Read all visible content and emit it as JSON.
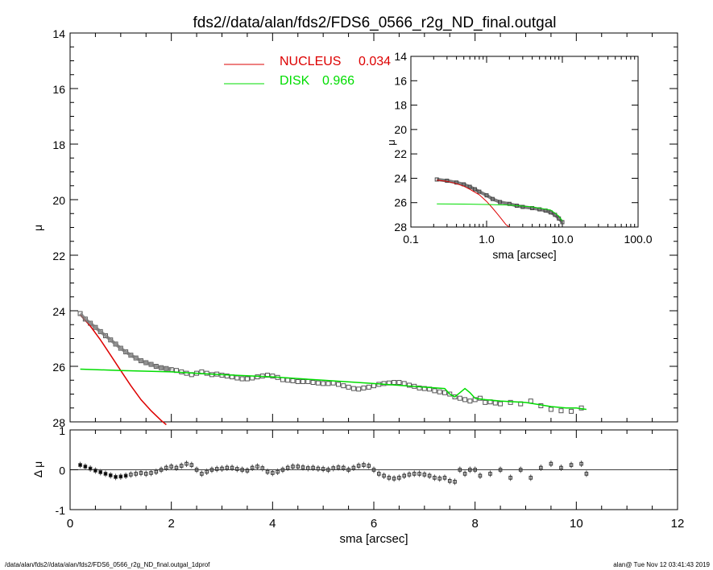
{
  "title": "fds2//data/alan/fds2/FDS6_0566_r2g_ND_final.outgal",
  "footer": {
    "left": "/data/alan/fds2//data/alan/fds2/FDS6_0566_r2g_ND_final.outgal_1dprof",
    "right": "alan@  Tue Nov 12 03:41:43 2019"
  },
  "colors": {
    "nucleus": "#dd0000",
    "disk": "#00dd00",
    "data": "#555555",
    "axis": "#000000"
  },
  "legend": [
    {
      "name": "NUCLEUS",
      "value": "0.034"
    },
    {
      "name": "DISK",
      "value": "0.966"
    }
  ],
  "chart_data": [
    {
      "id": "main",
      "type": "scatter",
      "xlabel": "",
      "ylabel": "μ",
      "xlim": [
        0,
        12
      ],
      "ylim": [
        28,
        14
      ],
      "y_inverted": true,
      "yticks": [
        "14",
        "16",
        "18",
        "20",
        "22",
        "24",
        "26",
        "28"
      ],
      "observed": {
        "x": [
          0.2,
          0.3,
          0.4,
          0.5,
          0.6,
          0.7,
          0.8,
          0.9,
          1.0,
          1.1,
          1.2,
          1.3,
          1.4,
          1.5,
          1.6,
          1.7,
          1.8,
          1.9,
          2.0,
          2.1,
          2.2,
          2.3,
          2.4,
          2.5,
          2.6,
          2.7,
          2.8,
          2.9,
          3.0,
          3.1,
          3.2,
          3.3,
          3.4,
          3.5,
          3.6,
          3.7,
          3.8,
          3.9,
          4.0,
          4.1,
          4.2,
          4.3,
          4.4,
          4.5,
          4.6,
          4.7,
          4.8,
          4.9,
          5.0,
          5.1,
          5.2,
          5.3,
          5.4,
          5.5,
          5.6,
          5.7,
          5.8,
          5.9,
          6.0,
          6.1,
          6.2,
          6.3,
          6.4,
          6.5,
          6.6,
          6.7,
          6.8,
          6.9,
          7.0,
          7.1,
          7.2,
          7.3,
          7.4,
          7.5,
          7.6,
          7.7,
          7.8,
          7.9,
          8.0,
          8.1,
          8.2,
          8.3,
          8.4,
          8.5,
          8.7,
          8.9,
          9.1,
          9.3,
          9.5,
          9.7,
          9.9,
          10.1
        ],
        "y": [
          24.1,
          24.3,
          24.45,
          24.6,
          24.75,
          24.9,
          25.05,
          25.2,
          25.35,
          25.48,
          25.6,
          25.7,
          25.8,
          25.87,
          25.93,
          26.0,
          26.05,
          26.08,
          26.12,
          26.15,
          26.2,
          26.25,
          26.3,
          26.25,
          26.2,
          26.25,
          26.3,
          26.28,
          26.32,
          26.35,
          26.38,
          26.42,
          26.45,
          26.45,
          26.42,
          26.38,
          26.35,
          26.32,
          26.35,
          26.4,
          26.48,
          26.5,
          26.52,
          26.55,
          26.55,
          26.55,
          26.58,
          26.6,
          26.62,
          26.62,
          26.6,
          26.65,
          26.7,
          26.75,
          26.8,
          26.82,
          26.78,
          26.75,
          26.7,
          26.65,
          26.62,
          26.6,
          26.58,
          26.58,
          26.62,
          26.68,
          26.72,
          26.78,
          26.8,
          26.82,
          26.88,
          26.92,
          26.95,
          27.0,
          27.1,
          27.15,
          27.2,
          27.25,
          27.2,
          27.15,
          27.3,
          27.28,
          27.32,
          27.35,
          27.3,
          27.35,
          27.25,
          27.42,
          27.55,
          27.6,
          27.62,
          27.5
        ]
      },
      "nucleus_model": {
        "x": [
          0.2,
          0.4,
          0.6,
          0.8,
          1.0,
          1.2,
          1.4,
          1.6,
          1.8,
          1.9
        ],
        "y": [
          24.15,
          24.55,
          25.05,
          25.6,
          26.15,
          26.7,
          27.2,
          27.6,
          27.95,
          28.1
        ]
      },
      "disk_model": {
        "x": [
          0.2,
          1.0,
          2.0,
          3.0,
          4.0,
          5.0,
          6.0,
          7.0,
          7.4,
          7.5,
          7.6,
          7.7,
          7.8,
          7.9,
          8.0,
          8.2,
          8.5,
          9.0,
          9.5,
          9.8,
          10.0,
          10.2
        ],
        "y": [
          26.1,
          26.15,
          26.2,
          26.3,
          26.38,
          26.5,
          26.62,
          26.75,
          26.8,
          27.0,
          27.1,
          26.95,
          26.8,
          26.95,
          27.15,
          27.2,
          27.25,
          27.3,
          27.45,
          27.5,
          27.5,
          27.55
        ]
      }
    },
    {
      "id": "residual",
      "type": "scatter",
      "xlabel": "sma [arcsec]",
      "ylabel": "Δ μ",
      "xlim": [
        0,
        12
      ],
      "ylim": [
        -1,
        1
      ],
      "xticks": [
        "0",
        "2",
        "4",
        "6",
        "8",
        "10",
        "12"
      ],
      "yticks": [
        "1",
        "0",
        "-1"
      ],
      "x": [
        0.2,
        0.3,
        0.4,
        0.5,
        0.6,
        0.7,
        0.8,
        0.9,
        1.0,
        1.1,
        1.2,
        1.3,
        1.4,
        1.5,
        1.6,
        1.7,
        1.8,
        1.9,
        2.0,
        2.1,
        2.2,
        2.3,
        2.4,
        2.5,
        2.6,
        2.7,
        2.8,
        2.9,
        3.0,
        3.1,
        3.2,
        3.3,
        3.4,
        3.5,
        3.6,
        3.7,
        3.8,
        3.9,
        4.0,
        4.1,
        4.2,
        4.3,
        4.4,
        4.5,
        4.6,
        4.7,
        4.8,
        4.9,
        5.0,
        5.1,
        5.2,
        5.3,
        5.4,
        5.5,
        5.6,
        5.7,
        5.8,
        5.9,
        6.0,
        6.1,
        6.2,
        6.3,
        6.4,
        6.5,
        6.6,
        6.7,
        6.8,
        6.9,
        7.0,
        7.1,
        7.2,
        7.3,
        7.4,
        7.5,
        7.6,
        7.7,
        7.8,
        7.9,
        8.0,
        8.1,
        8.3,
        8.5,
        8.7,
        8.9,
        9.1,
        9.3,
        9.5,
        9.7,
        9.9,
        10.1,
        10.2
      ],
      "y": [
        0.12,
        0.08,
        0.03,
        -0.02,
        -0.06,
        -0.1,
        -0.14,
        -0.18,
        -0.17,
        -0.15,
        -0.12,
        -0.1,
        -0.08,
        -0.1,
        -0.08,
        -0.05,
        0.0,
        0.05,
        0.08,
        0.05,
        0.1,
        0.15,
        0.12,
        0.0,
        -0.1,
        -0.05,
        0.0,
        0.02,
        0.03,
        0.05,
        0.05,
        0.02,
        0.0,
        -0.02,
        0.05,
        0.08,
        0.04,
        -0.05,
        -0.08,
        -0.05,
        0.0,
        0.05,
        0.08,
        0.08,
        0.06,
        0.04,
        0.05,
        0.03,
        0.02,
        0.0,
        0.04,
        0.06,
        0.05,
        0.0,
        0.05,
        0.1,
        0.12,
        0.1,
        0.0,
        -0.1,
        -0.15,
        -0.2,
        -0.22,
        -0.2,
        -0.15,
        -0.12,
        -0.1,
        -0.1,
        -0.12,
        -0.15,
        -0.2,
        -0.22,
        -0.2,
        -0.28,
        -0.3,
        0.0,
        -0.1,
        0.0,
        0.0,
        -0.15,
        -0.1,
        0.0,
        -0.2,
        0.0,
        -0.2,
        0.05,
        0.15,
        0.05,
        0.12,
        0.15,
        -0.1
      ]
    },
    {
      "id": "inset",
      "type": "scatter",
      "xlabel": "sma [arcsec]",
      "ylabel": "μ",
      "xscale": "log",
      "xlim": [
        0.1,
        100.0
      ],
      "ylim": [
        28,
        14
      ],
      "y_inverted": true,
      "xticks": [
        "0.1",
        "1.0",
        "10.0",
        "100.0"
      ],
      "yticks": [
        "14",
        "16",
        "18",
        "20",
        "22",
        "24",
        "26",
        "28"
      ],
      "observed": {
        "x": [
          0.22,
          0.3,
          0.4,
          0.5,
          0.6,
          0.7,
          0.8,
          1.0,
          1.2,
          1.5,
          2.0,
          2.5,
          3.0,
          4.0,
          5.0,
          6.0,
          7.0,
          8.0,
          9.0,
          10.0
        ],
        "y": [
          24.1,
          24.2,
          24.35,
          24.5,
          24.7,
          24.9,
          25.1,
          25.4,
          25.7,
          25.95,
          26.1,
          26.25,
          26.35,
          26.45,
          26.55,
          26.65,
          26.8,
          27.0,
          27.3,
          27.6
        ]
      },
      "nucleus_model": {
        "x": [
          0.22,
          0.3,
          0.4,
          0.5,
          0.6,
          0.8,
          1.0,
          1.2,
          1.4,
          1.6,
          1.8,
          2.0
        ],
        "y": [
          24.15,
          24.25,
          24.45,
          24.65,
          24.9,
          25.35,
          25.9,
          26.45,
          26.95,
          27.4,
          27.8,
          28.0
        ]
      },
      "disk_model": {
        "x": [
          0.22,
          0.5,
          1.0,
          2.0,
          4.0,
          7.0,
          8.0,
          9.0,
          10.0
        ],
        "y": [
          26.1,
          26.12,
          26.15,
          26.2,
          26.35,
          26.6,
          26.85,
          27.1,
          27.5
        ]
      }
    }
  ]
}
